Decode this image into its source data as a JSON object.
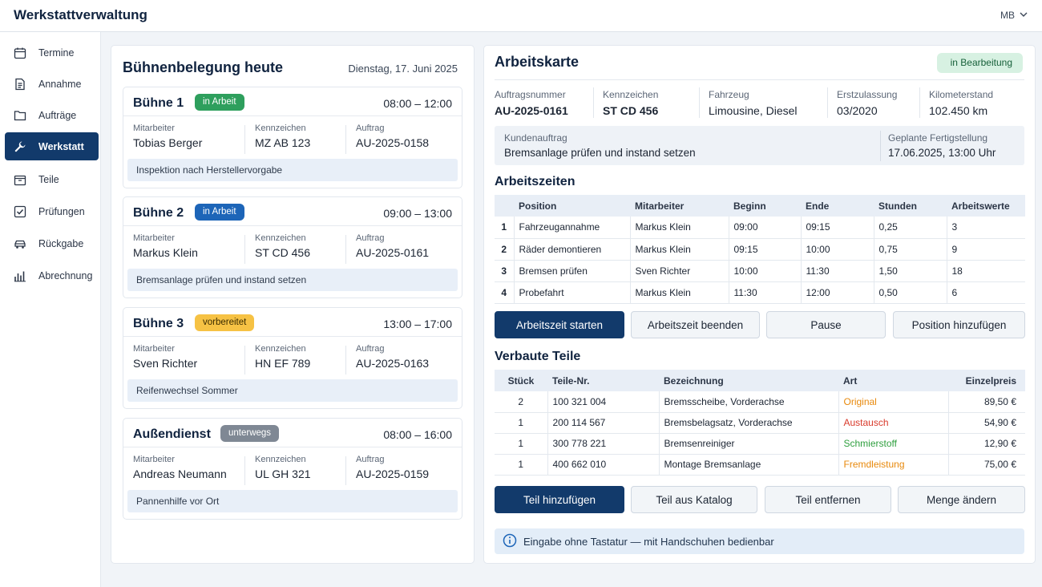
{
  "app": {
    "title": "Werkstattverwaltung",
    "user": "MB"
  },
  "sidebar": {
    "items": [
      {
        "label": "Termine",
        "icon": "calendar-icon"
      },
      {
        "label": "Annahme",
        "icon": "document-icon"
      },
      {
        "label": "Aufträge",
        "icon": "folder-icon"
      },
      {
        "label": "Werkstatt",
        "icon": "wrench-icon",
        "active": true
      },
      {
        "label": "Teile",
        "icon": "box-icon"
      },
      {
        "label": "Prüfungen",
        "icon": "checkbox-icon"
      },
      {
        "label": "Rückgabe",
        "icon": "car-icon"
      },
      {
        "label": "Abrechnung",
        "icon": "chart-icon"
      }
    ]
  },
  "bays": {
    "title": "Bühnenbelegung heute",
    "date": "Dienstag, 17. Juni 2025",
    "labels": {
      "employee": "Mitarbeiter",
      "plate": "Kennzeichen",
      "order": "Auftrag"
    },
    "items": [
      {
        "name": "Bühne 1",
        "status": "in Arbeit",
        "status_color": "#2e9f5d",
        "time": "08:00 – 12:00",
        "employee": "Tobias Berger",
        "plate": "MZ AB 123",
        "order": "AU-2025-0158",
        "note": "Inspektion nach Herstellervorgabe"
      },
      {
        "name": "Bühne 2",
        "status": "in Arbeit",
        "status_color": "#1d65b8",
        "time": "09:00 – 13:00",
        "employee": "Markus Klein",
        "plate": "ST CD 456",
        "order": "AU-2025-0161",
        "note": "Bremsanlage prüfen und instand setzen"
      },
      {
        "name": "Bühne 3",
        "status": "vorbereitet",
        "status_color": "#f6c244",
        "time": "13:00 – 17:00",
        "employee": "Sven Richter",
        "plate": "HN EF 789",
        "order": "AU-2025-0163",
        "note": "Reifenwechsel Sommer"
      },
      {
        "name": "Außendienst",
        "status": "unterwegs",
        "status_color": "#7f8894",
        "time": "08:00 – 16:00",
        "employee": "Andreas Neumann",
        "plate": "UL GH 321",
        "order": "AU-2025-0159",
        "note": "Pannenhilfe vor Ort"
      }
    ]
  },
  "job_card": {
    "title": "Arbeitskarte",
    "status": "in Bearbeitung",
    "fields": [
      {
        "label": "Auftragsnummer",
        "value": "AU-2025-0161"
      },
      {
        "label": "Kennzeichen",
        "value": "ST CD 456"
      },
      {
        "label": "Fahrzeug",
        "value": "Limousine, Diesel"
      },
      {
        "label": "Erstzulassung",
        "value": "03/2020"
      },
      {
        "label": "Kilometerstand",
        "value": "102.450 km"
      }
    ],
    "customer_order_label": "Kundenauftrag",
    "customer_order": "Bremsanlage prüfen und instand setzen",
    "completion_label": "Geplante Fertigstellung",
    "completion": "17.06.2025, 13:00 Uhr",
    "work_times": {
      "title": "Arbeitszeiten",
      "columns": [
        "",
        "Position",
        "Mitarbeiter",
        "Beginn",
        "Ende",
        "Stunden",
        "Arbeitswerte"
      ],
      "rows": [
        [
          "1",
          "Fahrzeugannahme",
          "Markus Klein",
          "09:00",
          "09:15",
          "0,25",
          "3"
        ],
        [
          "2",
          "Räder demontieren",
          "Markus Klein",
          "09:15",
          "10:00",
          "0,75",
          "9"
        ],
        [
          "3",
          "Bremsen prüfen",
          "Sven Richter",
          "10:00",
          "11:30",
          "1,50",
          "18"
        ],
        [
          "4",
          "Probefahrt",
          "Markus Klein",
          "11:30",
          "12:00",
          "0,50",
          "6"
        ]
      ],
      "buttons": [
        "Arbeitszeit starten",
        "Arbeitszeit beenden",
        "Pause",
        "Position hinzufügen"
      ]
    },
    "parts": {
      "title": "Verbaute Teile",
      "columns": [
        "Stück",
        "Teile-Nr.",
        "Bezeichnung",
        "Art",
        "Einzelpreis"
      ],
      "rows": [
        {
          "qty": "2",
          "part_no": "100 321 004",
          "desc": "Bremsscheibe, Vorderachse",
          "type": "Original",
          "type_color": "#e8890c",
          "price": "89,50 €"
        },
        {
          "qty": "1",
          "part_no": "200 114 567",
          "desc": "Bremsbelagsatz, Vorderachse",
          "type": "Austausch",
          "type_color": "#d93a2b",
          "price": "54,90 €"
        },
        {
          "qty": "1",
          "part_no": "300 778 221",
          "desc": "Bremsenreiniger",
          "type": "Schmierstoff",
          "type_color": "#2e9f3e",
          "price": "12,90 €"
        },
        {
          "qty": "1",
          "part_no": "400 662 010",
          "desc": "Montage Bremsanlage",
          "type": "Fremdleistung",
          "type_color": "#e8890c",
          "price": "75,00 €"
        }
      ],
      "buttons": [
        "Teil hinzufügen",
        "Teil aus Katalog",
        "Teil entfernen",
        "Menge ändern"
      ]
    },
    "hint": "Eingabe ohne Tastatur — mit Handschuhen bedienbar"
  }
}
